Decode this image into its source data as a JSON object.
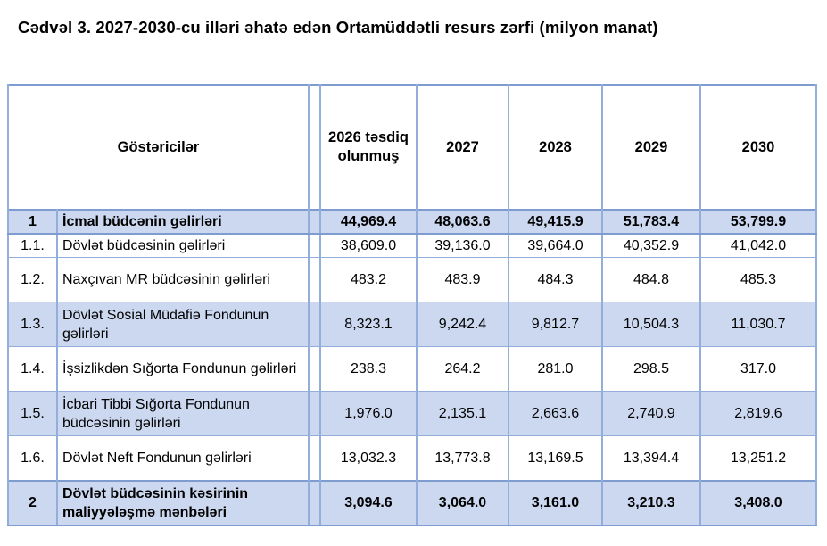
{
  "title": "Cədvəl 3. 2027-2030-cu illəri əhatə edən Ortamüddətli resurs zərfi (milyon manat)",
  "colors": {
    "row_shade": "#cbd8f0",
    "table_border": "#7e9ccf",
    "cell_border": "#93aeda"
  },
  "table": {
    "header": {
      "indicators": "Göstəricilər",
      "columns": [
        "2026 təsdiq olunmuş",
        "2027",
        "2028",
        "2029",
        "2030"
      ]
    },
    "rows": [
      {
        "num": "1",
        "label": "İcmal büdcənin gəlirləri",
        "values": [
          "44,969.4",
          "48,063.6",
          "49,415.9",
          "51,783.4",
          "53,799.9"
        ],
        "bold": true,
        "shaded": true,
        "tall": false
      },
      {
        "num": "1.1.",
        "label": "Dövlət büdcəsinin gəlirləri",
        "values": [
          "38,609.0",
          "39,136.0",
          "39,664.0",
          "40,352.9",
          "41,042.0"
        ],
        "bold": false,
        "shaded": false,
        "tall": false
      },
      {
        "num": "1.2.",
        "label": "Naxçıvan MR büdcəsinin gəlirləri",
        "values": [
          "483.2",
          "483.9",
          "484.3",
          "484.8",
          "485.3"
        ],
        "bold": false,
        "shaded": false,
        "tall": true
      },
      {
        "num": "1.3.",
        "label": "Dövlət Sosial Müdafiə Fondunun gəlirləri",
        "values": [
          "8,323.1",
          "9,242.4",
          "9,812.7",
          "10,504.3",
          "11,030.7"
        ],
        "bold": false,
        "shaded": true,
        "tall": true
      },
      {
        "num": "1.4.",
        "label": "İşsizlikdən Sığorta Fondunun gəlirləri",
        "values": [
          "238.3",
          "264.2",
          "281.0",
          "298.5",
          "317.0"
        ],
        "bold": false,
        "shaded": false,
        "tall": true
      },
      {
        "num": "1.5.",
        "label": "İcbari Tibbi Sığorta Fondunun büdcəsinin gəlirləri",
        "values": [
          "1,976.0",
          "2,135.1",
          "2,663.6",
          "2,740.9",
          "2,819.6"
        ],
        "bold": false,
        "shaded": true,
        "tall": true
      },
      {
        "num": "1.6.",
        "label": "Dövlət Neft Fondunun gəlirləri",
        "values": [
          "13,032.3",
          "13,773.8",
          "13,169.5",
          "13,394.4",
          "13,251.2"
        ],
        "bold": false,
        "shaded": false,
        "tall": true
      },
      {
        "num": "2",
        "label": "Dövlət büdcəsinin kəsirinin maliyyələşmə mənbələri",
        "values": [
          "3,094.6",
          "3,064.0",
          "3,161.0",
          "3,210.3",
          "3,408.0"
        ],
        "bold": true,
        "shaded": true,
        "tall": true
      }
    ]
  }
}
